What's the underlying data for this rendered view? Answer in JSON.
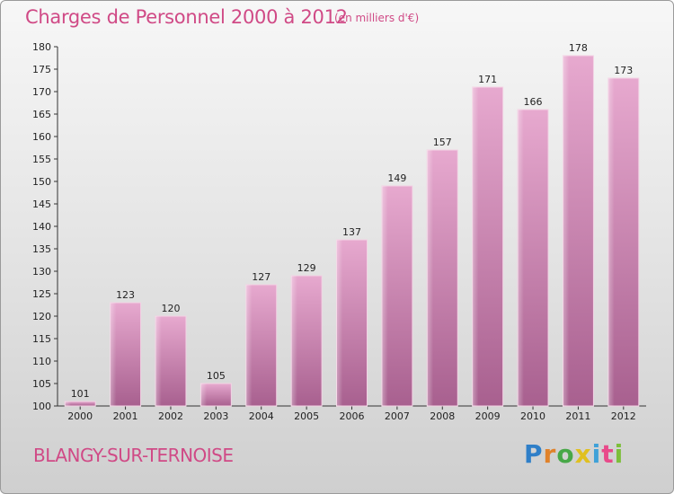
{
  "title": "Charges de Personnel 2000 à 2012",
  "subtitle": "(en milliers d'€)",
  "town": "BLANGY-SUR-TERNOISE",
  "brand": "Proxiti",
  "colors": {
    "bar": "#d88cb8",
    "title": "#d04a86",
    "axis": "#333333"
  },
  "chart_data": {
    "type": "bar",
    "title": "Charges de Personnel 2000 à 2012",
    "subtitle": "(en milliers d'€)",
    "categories": [
      "2000",
      "2001",
      "2002",
      "2003",
      "2004",
      "2005",
      "2006",
      "2007",
      "2008",
      "2009",
      "2010",
      "2011",
      "2012"
    ],
    "values": [
      101,
      123,
      120,
      105,
      127,
      129,
      137,
      149,
      157,
      171,
      166,
      178,
      173
    ],
    "xlabel": "",
    "ylabel": "",
    "ylim": [
      100,
      180
    ],
    "yticks": [
      100,
      105,
      110,
      115,
      120,
      125,
      130,
      135,
      140,
      145,
      150,
      155,
      160,
      165,
      170,
      175,
      180
    ],
    "grid": false,
    "legend": "none"
  }
}
